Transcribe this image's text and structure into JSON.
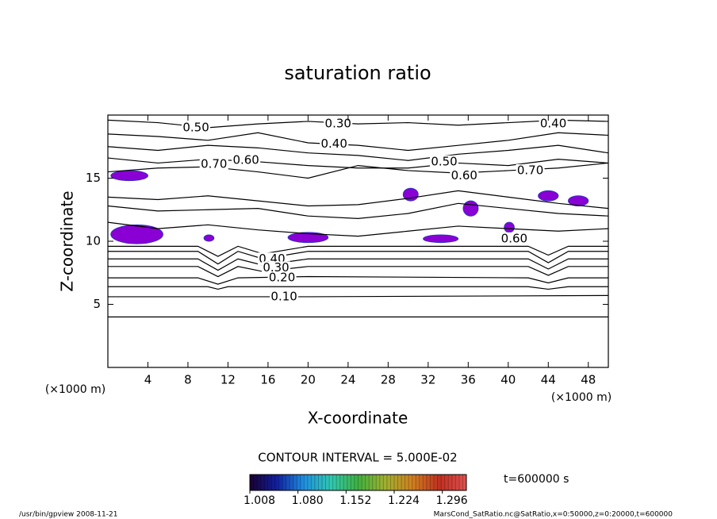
{
  "chart_data": {
    "type": "contour",
    "title": "saturation ratio",
    "x_label": "X-coordinate",
    "y_label": "Z-coordinate",
    "x_unit": "(×1000 m)",
    "y_unit": "(×1000 m)",
    "xlim": [
      0,
      50
    ],
    "ylim": [
      0,
      20
    ],
    "xticks": [
      4,
      8,
      12,
      16,
      20,
      24,
      28,
      32,
      36,
      40,
      44,
      48
    ],
    "yticks": [
      5,
      10,
      15
    ],
    "line_color": "#000000",
    "contours": [
      {
        "level": 0.05,
        "x": [
          0,
          50
        ],
        "z": [
          4,
          4
        ]
      },
      {
        "level": 0.1,
        "x": [
          0,
          17,
          20,
          50
        ],
        "z": [
          5.6,
          5.6,
          5.6,
          5.7
        ]
      },
      {
        "level": 0.15,
        "x": [
          0,
          10,
          11,
          12,
          20,
          42,
          44,
          46,
          50
        ],
        "z": [
          6.4,
          6.4,
          6.2,
          6.4,
          6.4,
          6.4,
          6.2,
          6.4,
          6.4
        ]
      },
      {
        "level": 0.2,
        "x": [
          0,
          9,
          11,
          13,
          20,
          42,
          44,
          46,
          50
        ],
        "z": [
          7.1,
          7.1,
          6.6,
          7.1,
          7.2,
          7.1,
          6.7,
          7.1,
          7.1
        ]
      },
      {
        "level": 0.3,
        "x": [
          0,
          9,
          11,
          13,
          15.5,
          20,
          42,
          44,
          46,
          50
        ],
        "z": [
          8,
          8,
          7.2,
          8,
          7.6,
          8,
          8,
          7.3,
          8,
          8
        ]
      },
      {
        "level": 0.4,
        "x": [
          0,
          9,
          11,
          13,
          15.5,
          20,
          42,
          44,
          46,
          50
        ],
        "z": [
          8.6,
          8.6,
          7.7,
          8.6,
          8.1,
          8.6,
          8.6,
          7.8,
          8.6,
          8.6
        ]
      },
      {
        "level": 0.5,
        "x": [
          0,
          9,
          11,
          13,
          15.5,
          20,
          42,
          44,
          46,
          50
        ],
        "z": [
          9.2,
          9.2,
          8.2,
          9.2,
          8.6,
          9.2,
          9.2,
          8.3,
          9.2,
          9.2
        ]
      },
      {
        "level": 0.6,
        "x": [
          0,
          9,
          11,
          13,
          15.5,
          20,
          42,
          44,
          46,
          50
        ],
        "z": [
          9.6,
          9.6,
          8.8,
          9.6,
          9.0,
          9.6,
          9.6,
          8.9,
          9.6,
          9.6
        ]
      },
      {
        "level": 0.95,
        "x": [
          0,
          5,
          10,
          15,
          20,
          25,
          30,
          35,
          40,
          45,
          50
        ],
        "z": [
          11.5,
          11,
          11.3,
          10.9,
          10.6,
          10.4,
          10.8,
          11.2,
          11,
          10.8,
          11
        ]
      },
      {
        "level": 0.9,
        "x": [
          0,
          5,
          10,
          15,
          20,
          25,
          30,
          35,
          40,
          45,
          50
        ],
        "z": [
          12.8,
          12.4,
          12.5,
          12.6,
          12,
          11.8,
          12.2,
          13,
          12.6,
          12.2,
          12
        ]
      },
      {
        "level": 0.8,
        "x": [
          0,
          5,
          10,
          15,
          20,
          25,
          30,
          35,
          40,
          45,
          50
        ],
        "z": [
          13.5,
          13.3,
          13.6,
          13.2,
          12.8,
          12.9,
          13.4,
          14,
          13.5,
          13,
          12.6
        ]
      },
      {
        "level": 0.7,
        "x": [
          0,
          5,
          10,
          15,
          20,
          25,
          30,
          35,
          40,
          45,
          50
        ],
        "z": [
          15.5,
          15.8,
          15.9,
          15.5,
          15,
          16,
          15.6,
          15.4,
          15.6,
          15.8,
          16.2
        ]
      },
      {
        "level": 0.6,
        "x": [
          0,
          5,
          10,
          15,
          20,
          25,
          30,
          35,
          40,
          45,
          50
        ],
        "z": [
          16.6,
          16.2,
          16.5,
          16.3,
          16,
          15.8,
          15.8,
          16.2,
          16,
          16.5,
          16.2
        ]
      },
      {
        "level": 0.5,
        "x": [
          0,
          5,
          10,
          15,
          20,
          25,
          30,
          35,
          40,
          45,
          50
        ],
        "z": [
          17.5,
          17.2,
          17.6,
          17.4,
          17,
          16.8,
          16.4,
          16.9,
          17.2,
          17.6,
          17
        ]
      },
      {
        "level": 0.4,
        "x": [
          0,
          5,
          10,
          15,
          20,
          25,
          30,
          35,
          40,
          45,
          50
        ],
        "z": [
          18.5,
          18.3,
          18,
          18.6,
          17.8,
          17.6,
          17.2,
          17.6,
          18,
          18.6,
          18.4
        ]
      },
      {
        "level": 0.3,
        "x": [
          0,
          5,
          10,
          15,
          20,
          25,
          30,
          35,
          40,
          45,
          50
        ],
        "z": [
          19.6,
          19.4,
          19,
          19.3,
          19.5,
          19.3,
          19.4,
          19.2,
          19.4,
          19.6,
          19.5
        ]
      }
    ],
    "contour_labels": [
      {
        "text": "0.30",
        "x": 23,
        "z": 19.3
      },
      {
        "text": "0.50",
        "x": 8.8,
        "z": 19
      },
      {
        "text": "0.40",
        "x": 44.5,
        "z": 19.3
      },
      {
        "text": "0.40",
        "x": 22.6,
        "z": 17.7
      },
      {
        "text": "0.70",
        "x": 10.6,
        "z": 16.1
      },
      {
        "text": "0.60",
        "x": 13.8,
        "z": 16.4
      },
      {
        "text": "0.50",
        "x": 33.6,
        "z": 16.3
      },
      {
        "text": "0.60",
        "x": 35.6,
        "z": 15.2
      },
      {
        "text": "0.70",
        "x": 42.2,
        "z": 15.6
      },
      {
        "text": "0.60",
        "x": 40.6,
        "z": 10.2
      },
      {
        "text": "0.40",
        "x": 16.4,
        "z": 8.6
      },
      {
        "text": "0.30",
        "x": 16.8,
        "z": 7.9
      },
      {
        "text": "0.20",
        "x": 17.4,
        "z": 7.1
      },
      {
        "text": "0.10",
        "x": 17.6,
        "z": 5.6
      }
    ],
    "patch_color": "#8a00d4",
    "patches": [
      {
        "x": [
          0.3,
          4
        ],
        "z": [
          14.8,
          15.6
        ]
      },
      {
        "x": [
          0.3,
          5.5
        ],
        "z": [
          9.8,
          11.3
        ]
      },
      {
        "x": [
          9.6,
          10.6
        ],
        "z": [
          10,
          10.5
        ]
      },
      {
        "x": [
          18,
          22
        ],
        "z": [
          9.9,
          10.7
        ]
      },
      {
        "x": [
          29.5,
          31
        ],
        "z": [
          13.2,
          14.2
        ]
      },
      {
        "x": [
          35.5,
          37
        ],
        "z": [
          12,
          13.2
        ]
      },
      {
        "x": [
          31.5,
          35
        ],
        "z": [
          9.9,
          10.5
        ]
      },
      {
        "x": [
          39.6,
          40.6
        ],
        "z": [
          10.7,
          11.5
        ]
      },
      {
        "x": [
          43,
          45
        ],
        "z": [
          13.2,
          14
        ]
      },
      {
        "x": [
          46,
          48
        ],
        "z": [
          12.8,
          13.6
        ]
      }
    ],
    "contour_interval_text": "CONTOUR INTERVAL = 5.000E-02",
    "colorbar_lim": [
      1.008,
      1.332
    ],
    "colorbar_ticks": [
      1.008,
      {
        "value": 1.08,
        "label": "1.080"
      },
      1.152,
      1.224,
      1.296
    ],
    "colorbar_colors": [
      "#1a0030",
      "#1020a0",
      "#2090e0",
      "#30c8b0",
      "#40b040",
      "#a0b030",
      "#d08020",
      "#c03020",
      "#e05050"
    ],
    "time_text": "t=600000 s",
    "footer_left": "/usr/bin/gpview   2008-11-21",
    "footer_right": "MarsCond_SatRatio.nc@SatRatio,x=0:50000,z=0:20000,t=600000"
  }
}
